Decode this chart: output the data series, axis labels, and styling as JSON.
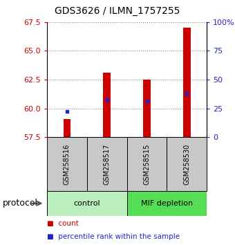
{
  "title": "GDS3626 / ILMN_1757255",
  "samples": [
    "GSM258516",
    "GSM258517",
    "GSM258515",
    "GSM258530"
  ],
  "bar_bottoms": [
    57.5,
    57.5,
    57.5,
    57.5
  ],
  "bar_tops": [
    59.1,
    63.1,
    62.5,
    67.0
  ],
  "bar_color": "#cc0000",
  "blue_marker_values": [
    59.75,
    60.75,
    60.65,
    61.3
  ],
  "blue_marker_color": "#2222cc",
  "ylim_left": [
    57.5,
    67.5
  ],
  "ylim_right": [
    0,
    100
  ],
  "yticks_left": [
    57.5,
    60.0,
    62.5,
    65.0,
    67.5
  ],
  "yticks_right": [
    0,
    25,
    50,
    75,
    100
  ],
  "yticklabels_right": [
    "0",
    "25",
    "50",
    "75",
    "100%"
  ],
  "left_tick_color": "#cc0000",
  "right_tick_color": "#2222cc",
  "protocol_label": "protocol",
  "bar_width": 0.18,
  "dotted_grid_color": "#888888",
  "background_color": "#ffffff",
  "sample_label_area_color": "#c8c8c8",
  "group_area_color_control": "#bbeebc",
  "group_area_color_mif": "#55dd55"
}
